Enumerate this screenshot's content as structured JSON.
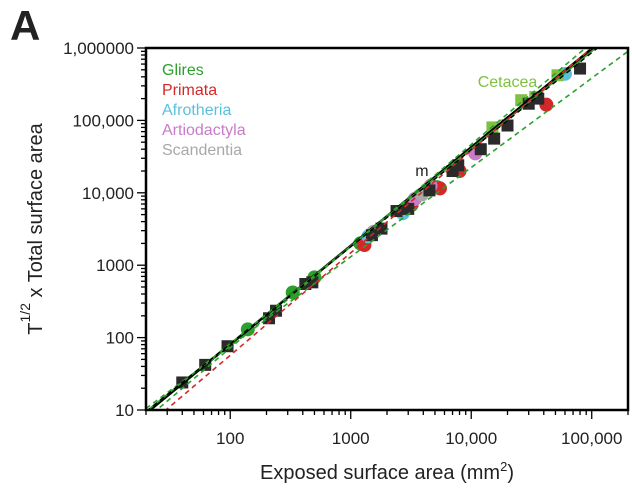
{
  "panel_label": "A",
  "chart_data": {
    "type": "scatter",
    "xscale": "log",
    "yscale": "log",
    "xlim": [
      20,
      200000
    ],
    "ylim": [
      10,
      1000000
    ],
    "xlabel": "Exposed surface area (mm",
    "xlabel_sup": "2",
    "xlabel_end": ")",
    "ylabel_prefix": "T",
    "ylabel_sup": "1/2",
    "ylabel_rest": " x Total surface area",
    "xticks": [
      100,
      1000,
      10000,
      100000
    ],
    "xtick_labels": [
      "100",
      "1000",
      "10,000",
      "100,000"
    ],
    "yticks": [
      10,
      100,
      1000,
      10000,
      100000,
      1000000
    ],
    "ytick_labels": [
      "10",
      "100",
      "1000",
      "10,000",
      "100,000",
      "1,000000"
    ],
    "legend": [
      {
        "label": "Glires",
        "color": "#2ca02c"
      },
      {
        "label": "Primata",
        "color": "#d62728"
      },
      {
        "label": "Afrotheria",
        "color": "#5bc0de"
      },
      {
        "label": "Artiodactyla",
        "color": "#c77cc7"
      },
      {
        "label": "Scandentia",
        "color": "#a8a8a8"
      }
    ],
    "annotations": [
      {
        "text": "Cetacea",
        "color": "#7dc142",
        "x": 20000,
        "y": 290000
      },
      {
        "text": "m",
        "color": "#222222",
        "x": 3900,
        "y": 17000
      }
    ],
    "series": [
      {
        "marker": "circle",
        "color": "#2ca02c",
        "points": [
          [
            140,
            130
          ],
          [
            330,
            420
          ],
          [
            500,
            680
          ],
          [
            1200,
            2000
          ],
          [
            5200,
            12000
          ]
        ]
      },
      {
        "marker": "circle",
        "color": "#d62728",
        "points": [
          [
            1300,
            1900
          ],
          [
            3200,
            6800
          ],
          [
            5500,
            11500
          ],
          [
            42000,
            165000
          ],
          [
            8000,
            20000
          ]
        ]
      },
      {
        "marker": "circle",
        "color": "#5bc0de",
        "points": [
          [
            1400,
            2500
          ],
          [
            2700,
            5200
          ],
          [
            60000,
            440000
          ]
        ]
      },
      {
        "marker": "circle",
        "color": "#c77cc7",
        "points": [
          [
            3400,
            8200
          ],
          [
            4600,
            12500
          ],
          [
            10800,
            35000
          ]
        ]
      },
      {
        "marker": "circle",
        "color": "#a8a8a8",
        "points": [
          [
            1550,
            2900
          ],
          [
            3900,
            9500
          ]
        ]
      },
      {
        "marker": "square",
        "color": "#7dc142",
        "points": [
          [
            15000,
            80000
          ],
          [
            26000,
            190000
          ],
          [
            34000,
            210000
          ],
          [
            52000,
            420000
          ]
        ]
      },
      {
        "marker": "square",
        "color": "#2a2a2a",
        "points": [
          [
            40,
            24
          ],
          [
            62,
            42
          ],
          [
            95,
            76
          ],
          [
            210,
            185
          ],
          [
            240,
            235
          ],
          [
            420,
            550
          ],
          [
            480,
            580
          ],
          [
            1500,
            2600
          ],
          [
            1800,
            3200
          ],
          [
            2400,
            5600
          ],
          [
            3000,
            6000
          ],
          [
            4500,
            10800
          ],
          [
            7000,
            20000
          ],
          [
            7800,
            24000
          ],
          [
            12000,
            40000
          ],
          [
            15500,
            56000
          ],
          [
            20000,
            85000
          ],
          [
            30000,
            170000
          ],
          [
            36000,
            200000
          ],
          [
            80000,
            520000
          ]
        ]
      }
    ],
    "lines": [
      {
        "color": "#000000",
        "style": "solid",
        "width": 2.6,
        "from": [
          20,
          9.0
        ],
        "to": [
          120000,
          1250000
        ]
      },
      {
        "color": "#2ca02c",
        "style": "solid",
        "width": 1.6,
        "from": [
          20,
          9.5
        ],
        "to": [
          120000,
          1150000
        ]
      },
      {
        "color": "#2ca02c",
        "style": "dashed",
        "width": 1.6,
        "from": [
          20,
          10.5
        ],
        "to": [
          200000,
          900000
        ]
      },
      {
        "color": "#2ca02c",
        "style": "dashed",
        "width": 1.6,
        "from": [
          20,
          7.5
        ],
        "to": [
          110000,
          1350000
        ]
      },
      {
        "color": "#d62728",
        "style": "dashed",
        "width": 1.6,
        "from": [
          25,
          8.0
        ],
        "to": [
          120000,
          1300000
        ]
      },
      {
        "color": "#000000",
        "style": "dashed",
        "width": 1.4,
        "from": [
          20,
          9.5
        ],
        "to": [
          120000,
          1100000
        ]
      }
    ]
  }
}
